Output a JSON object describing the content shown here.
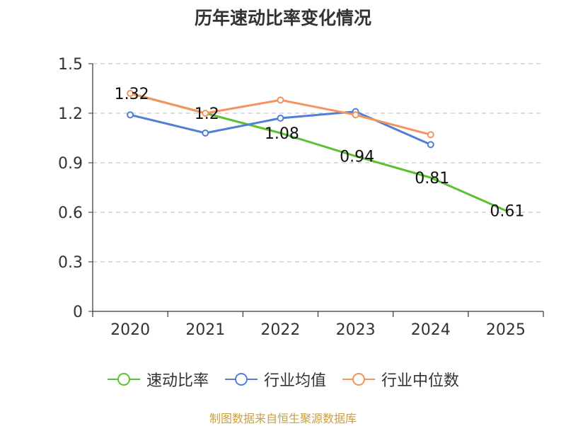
{
  "title": "历年速动比率变化情况",
  "footer": "制图数据来自恒生聚源数据库",
  "colors": {
    "速动比率": "#5cc130",
    "行业均值": "#4f7fd8",
    "行业中位数": "#f5935e",
    "grid": "#c8c8c8",
    "axis": "#333333"
  },
  "chart_data": {
    "type": "line",
    "title": "历年速动比率变化情况",
    "categories": [
      "2020",
      "2021",
      "2022",
      "2023",
      "2024",
      "2025"
    ],
    "ylim": [
      0,
      1.5
    ],
    "yticks": [
      "0",
      "0.3",
      "0.6",
      "0.9",
      "1.2",
      "1.5"
    ],
    "grid": true,
    "legend_position": "bottom",
    "series": [
      {
        "name": "速动比率",
        "values": [
          1.32,
          1.2,
          1.08,
          0.94,
          0.81,
          0.61
        ],
        "labels": [
          "1.32",
          "1.2",
          "1.08",
          "0.94",
          "0.81",
          "0.61"
        ],
        "markers": "hidden"
      },
      {
        "name": "行业均值",
        "values": [
          1.19,
          1.08,
          1.17,
          1.21,
          1.01,
          null
        ]
      },
      {
        "name": "行业中位数",
        "values": [
          1.32,
          1.2,
          1.28,
          1.19,
          1.07,
          null
        ]
      }
    ]
  }
}
